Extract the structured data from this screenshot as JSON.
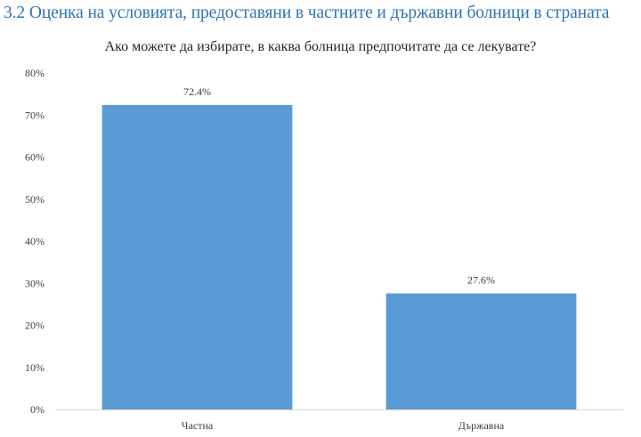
{
  "page": {
    "heading": "3.2 Оценка на условията, предоставяни в частните и държавни болници в страната"
  },
  "chart_data": {
    "type": "bar",
    "title": "Ако можете да избирате, в каква болница предпочитате да се лекувате?",
    "categories": [
      "Частна",
      "Държавна"
    ],
    "values": [
      72.4,
      27.6
    ],
    "data_labels": [
      "72.4%",
      "27.6%"
    ],
    "y_ticks": [
      0,
      10,
      20,
      30,
      40,
      50,
      60,
      70,
      80
    ],
    "y_tick_labels": [
      "0%",
      "10%",
      "20%",
      "30%",
      "40%",
      "50%",
      "60%",
      "70%",
      "80%"
    ],
    "ylim": [
      0,
      80
    ],
    "xlabel": "",
    "ylabel": "",
    "grid": false,
    "legend": false,
    "bar_color": "#5b9bd5"
  }
}
